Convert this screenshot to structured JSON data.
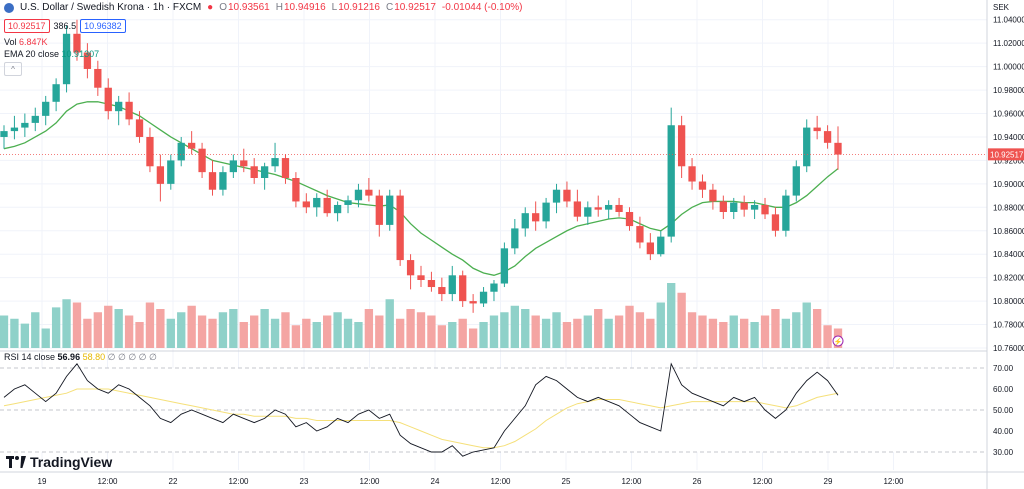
{
  "header": {
    "symbol": "U.S. Dollar / Swedish Krona · 1h · FXCM",
    "ohlc": {
      "o_label": "O",
      "o": "10.93561",
      "h_label": "H",
      "h": "10.94916",
      "l_label": "L",
      "l": "10.91216",
      "c_label": "C",
      "c": "10.92517",
      "change": "-0.01044 (-0.10%)"
    },
    "sell_price": "10.92517",
    "spread": "386.5",
    "buy_price": "10.96382"
  },
  "indicators": {
    "vol_label": "Vol",
    "vol_value": "6.847K",
    "ema_label": "EMA 20 close",
    "ema_value": "10.91307",
    "rsi_label": "RSI 14 close",
    "rsi_value": "56.96",
    "rsi_ma": "58.80",
    "rsi_extra": "∅ ∅ ∅ ∅ ∅"
  },
  "axis": {
    "currency": "SEK",
    "price_ticks": [
      "11.04000",
      "11.02000",
      "11.00000",
      "10.98000",
      "10.96000",
      "10.94000",
      "10.92000",
      "10.90000",
      "10.88000",
      "10.86000",
      "10.84000",
      "10.82000",
      "10.80000",
      "10.78000",
      "10.76000"
    ],
    "current_price_label": "10.92517",
    "rsi_ticks": [
      "70.00",
      "60.00",
      "50.00",
      "40.00",
      "30.00"
    ],
    "time_ticks": [
      "19",
      "12:00",
      "22",
      "12:00",
      "23",
      "12:00",
      "24",
      "12:00",
      "25",
      "12:00",
      "26",
      "12:00",
      "29",
      "12:00"
    ]
  },
  "brand": {
    "name": "TradingView"
  },
  "colors": {
    "up": "#26a69a",
    "down": "#ef5350",
    "ema": "#4caf50",
    "rsi": "#131722",
    "rsi_ma": "#f5e07a",
    "accent": "#2962ff"
  },
  "chart_data": [
    {
      "type": "candlestick",
      "title": "U.S. Dollar / Swedish Krona · 1h · FXCM",
      "ylim": [
        10.76,
        11.05
      ],
      "candles": [
        [
          10.94,
          10.95,
          10.93,
          10.945
        ],
        [
          10.945,
          10.958,
          10.938,
          10.948
        ],
        [
          10.948,
          10.96,
          10.94,
          10.952
        ],
        [
          10.952,
          10.965,
          10.945,
          10.958
        ],
        [
          10.958,
          10.975,
          10.95,
          10.97
        ],
        [
          10.97,
          10.99,
          10.962,
          10.985
        ],
        [
          10.985,
          11.035,
          10.978,
          11.028
        ],
        [
          11.028,
          11.04,
          11.005,
          11.012
        ],
        [
          11.012,
          11.02,
          10.99,
          10.998
        ],
        [
          10.998,
          11.005,
          10.975,
          10.982
        ],
        [
          10.982,
          10.99,
          10.955,
          10.962
        ],
        [
          10.962,
          10.975,
          10.95,
          10.97
        ],
        [
          10.97,
          10.978,
          10.95,
          10.955
        ],
        [
          10.955,
          10.962,
          10.935,
          10.94
        ],
        [
          10.94,
          10.948,
          10.91,
          10.915
        ],
        [
          10.915,
          10.925,
          10.885,
          10.9
        ],
        [
          10.9,
          10.925,
          10.895,
          10.92
        ],
        [
          10.92,
          10.94,
          10.915,
          10.935
        ],
        [
          10.935,
          10.945,
          10.925,
          10.93
        ],
        [
          10.93,
          10.935,
          10.905,
          10.91
        ],
        [
          10.91,
          10.92,
          10.89,
          10.895
        ],
        [
          10.895,
          10.915,
          10.89,
          10.91
        ],
        [
          10.91,
          10.925,
          10.905,
          10.92
        ],
        [
          10.92,
          10.93,
          10.91,
          10.915
        ],
        [
          10.915,
          10.922,
          10.9,
          10.905
        ],
        [
          10.905,
          10.918,
          10.895,
          10.915
        ],
        [
          10.915,
          10.935,
          10.91,
          10.922
        ],
        [
          10.922,
          10.925,
          10.9,
          10.905
        ],
        [
          10.905,
          10.91,
          10.88,
          10.885
        ],
        [
          10.885,
          10.892,
          10.875,
          10.88
        ],
        [
          10.88,
          10.892,
          10.872,
          10.888
        ],
        [
          10.888,
          10.895,
          10.872,
          10.875
        ],
        [
          10.875,
          10.885,
          10.868,
          10.882
        ],
        [
          10.882,
          10.89,
          10.875,
          10.886
        ],
        [
          10.886,
          10.9,
          10.88,
          10.895
        ],
        [
          10.895,
          10.905,
          10.885,
          10.89
        ],
        [
          10.89,
          10.895,
          10.855,
          10.865
        ],
        [
          10.865,
          10.895,
          10.86,
          10.89
        ],
        [
          10.89,
          10.895,
          10.83,
          10.835
        ],
        [
          10.835,
          10.84,
          10.81,
          10.822
        ],
        [
          10.822,
          10.83,
          10.812,
          10.818
        ],
        [
          10.818,
          10.825,
          10.808,
          10.812
        ],
        [
          10.812,
          10.82,
          10.8,
          10.806
        ],
        [
          10.806,
          10.83,
          10.8,
          10.822
        ],
        [
          10.822,
          10.826,
          10.795,
          10.8
        ],
        [
          10.8,
          10.806,
          10.79,
          10.798
        ],
        [
          10.798,
          10.812,
          10.795,
          10.808
        ],
        [
          10.808,
          10.818,
          10.8,
          10.815
        ],
        [
          10.815,
          10.85,
          10.812,
          10.845
        ],
        [
          10.845,
          10.87,
          10.84,
          10.862
        ],
        [
          10.862,
          10.88,
          10.855,
          10.875
        ],
        [
          10.875,
          10.885,
          10.86,
          10.868
        ],
        [
          10.868,
          10.888,
          10.862,
          10.884
        ],
        [
          10.884,
          10.9,
          10.875,
          10.895
        ],
        [
          10.895,
          10.902,
          10.88,
          10.885
        ],
        [
          10.885,
          10.895,
          10.868,
          10.872
        ],
        [
          10.872,
          10.885,
          10.865,
          10.88
        ],
        [
          10.88,
          10.89,
          10.872,
          10.878
        ],
        [
          10.878,
          10.886,
          10.87,
          10.882
        ],
        [
          10.882,
          10.888,
          10.872,
          10.876
        ],
        [
          10.876,
          10.88,
          10.86,
          10.864
        ],
        [
          10.864,
          10.872,
          10.845,
          10.85
        ],
        [
          10.85,
          10.858,
          10.835,
          10.84
        ],
        [
          10.84,
          10.86,
          10.838,
          10.855
        ],
        [
          10.855,
          10.965,
          10.85,
          10.95
        ],
        [
          10.95,
          10.958,
          10.905,
          10.915
        ],
        [
          10.915,
          10.922,
          10.895,
          10.902
        ],
        [
          10.902,
          10.908,
          10.888,
          10.895
        ],
        [
          10.895,
          10.9,
          10.878,
          10.885
        ],
        [
          10.885,
          10.89,
          10.87,
          10.876
        ],
        [
          10.876,
          10.888,
          10.87,
          10.884
        ],
        [
          10.884,
          10.89,
          10.872,
          10.878
        ],
        [
          10.878,
          10.886,
          10.87,
          10.882
        ],
        [
          10.882,
          10.888,
          10.87,
          10.874
        ],
        [
          10.874,
          10.88,
          10.855,
          10.86
        ],
        [
          10.86,
          10.895,
          10.855,
          10.89
        ],
        [
          10.89,
          10.92,
          10.885,
          10.915
        ],
        [
          10.915,
          10.955,
          10.91,
          10.948
        ],
        [
          10.948,
          10.958,
          10.938,
          10.945
        ],
        [
          10.945,
          10.95,
          10.93,
          10.935
        ],
        [
          10.935,
          10.949,
          10.912,
          10.925
        ]
      ],
      "volume": [
        20,
        18,
        15,
        22,
        12,
        25,
        30,
        28,
        18,
        22,
        26,
        24,
        20,
        16,
        28,
        24,
        18,
        22,
        26,
        20,
        18,
        22,
        24,
        16,
        20,
        24,
        18,
        22,
        14,
        18,
        16,
        20,
        22,
        18,
        16,
        24,
        20,
        30,
        18,
        24,
        22,
        20,
        14,
        16,
        18,
        12,
        16,
        20,
        22,
        26,
        24,
        20,
        18,
        22,
        16,
        18,
        20,
        24,
        18,
        20,
        26,
        22,
        18,
        28,
        40,
        34,
        22,
        20,
        18,
        16,
        20,
        18,
        16,
        20,
        24,
        18,
        22,
        28,
        24,
        14,
        12
      ],
      "ema": [
        10.93,
        10.932,
        10.935,
        10.94,
        10.945,
        10.952,
        10.962,
        10.968,
        10.97,
        10.97,
        10.968,
        10.966,
        10.962,
        10.958,
        10.952,
        10.946,
        10.94,
        10.935,
        10.93,
        10.925,
        10.92,
        10.918,
        10.916,
        10.914,
        10.912,
        10.91,
        10.908,
        10.905,
        10.902,
        10.898,
        10.894,
        10.89,
        10.887,
        10.884,
        10.883,
        10.882,
        10.881,
        10.882,
        10.876,
        10.866,
        10.858,
        10.852,
        10.846,
        10.84,
        10.835,
        10.828,
        10.824,
        10.822,
        10.825,
        10.83,
        10.838,
        10.845,
        10.85,
        10.855,
        10.86,
        10.864,
        10.866,
        10.868,
        10.87,
        10.871,
        10.87,
        10.866,
        10.862,
        10.86,
        10.866,
        10.874,
        10.88,
        10.884,
        10.885,
        10.885,
        10.885,
        10.884,
        10.884,
        10.882,
        10.88,
        10.88,
        10.884,
        10.89,
        10.898,
        10.906,
        10.913
      ],
      "rsi": [
        56,
        60,
        62,
        58,
        54,
        58,
        66,
        72,
        64,
        60,
        58,
        62,
        60,
        56,
        52,
        46,
        44,
        48,
        50,
        48,
        46,
        44,
        48,
        46,
        44,
        46,
        50,
        48,
        42,
        44,
        40,
        42,
        46,
        44,
        48,
        50,
        46,
        48,
        38,
        34,
        32,
        30,
        30,
        33,
        28,
        30,
        31,
        32,
        40,
        46,
        52,
        62,
        66,
        64,
        60,
        56,
        54,
        56,
        54,
        52,
        48,
        44,
        42,
        40,
        72,
        62,
        58,
        56,
        54,
        52,
        56,
        54,
        56,
        50,
        46,
        50,
        58,
        64,
        68,
        64,
        57
      ],
      "rsi_ma": [
        52,
        53,
        54,
        55,
        56,
        57,
        58,
        60,
        60,
        60,
        60,
        59,
        58,
        57,
        56,
        55,
        54,
        53,
        52,
        51,
        50,
        49,
        48,
        48,
        47,
        47,
        47,
        47,
        46,
        46,
        45,
        45,
        45,
        45,
        45,
        45,
        45,
        45,
        44,
        42,
        40,
        38,
        36,
        35,
        34,
        33,
        32,
        32,
        33,
        35,
        38,
        41,
        45,
        48,
        51,
        53,
        54,
        55,
        55,
        55,
        54,
        53,
        52,
        51,
        52,
        53,
        54,
        54,
        54,
        54,
        54,
        54,
        54,
        53,
        52,
        51,
        52,
        54,
        56,
        57,
        58
      ]
    }
  ]
}
